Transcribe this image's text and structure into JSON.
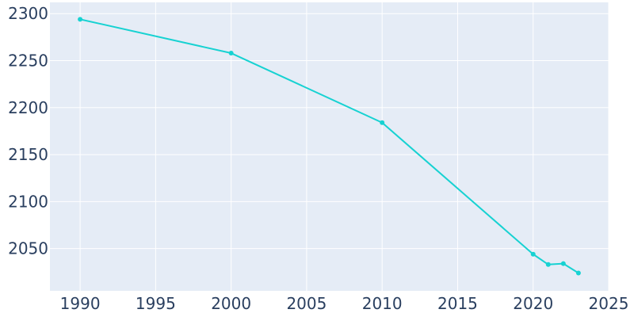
{
  "chart_data": {
    "type": "line",
    "title": "",
    "xlabel": "",
    "ylabel": "",
    "xlim": [
      1988,
      2025
    ],
    "ylim": [
      2005,
      2312
    ],
    "x_ticks": [
      1990,
      1995,
      2000,
      2005,
      2010,
      2015,
      2020,
      2025
    ],
    "y_ticks": [
      2050,
      2100,
      2150,
      2200,
      2250,
      2300
    ],
    "grid": true,
    "legend": "none",
    "colors": {
      "plot_background": "#e5ecf6",
      "grid": "#ffffff",
      "line": "#17d2d2",
      "tick_text": "#2a3f5f"
    },
    "series": [
      {
        "x": [
          1990,
          2000,
          2010,
          2020,
          2021,
          2022,
          2023
        ],
        "y": [
          2294,
          2258,
          2184,
          2044,
          2033,
          2034,
          2024
        ]
      }
    ]
  }
}
